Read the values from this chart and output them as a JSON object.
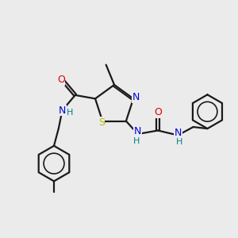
{
  "bg_color": "#ebebeb",
  "bond_color": "#1a1a1a",
  "bond_width": 1.6,
  "colors": {
    "N": "#0000dd",
    "O": "#dd0000",
    "S": "#bbbb00",
    "H": "#008080"
  },
  "figsize": [
    3.0,
    3.0
  ],
  "dpi": 100
}
